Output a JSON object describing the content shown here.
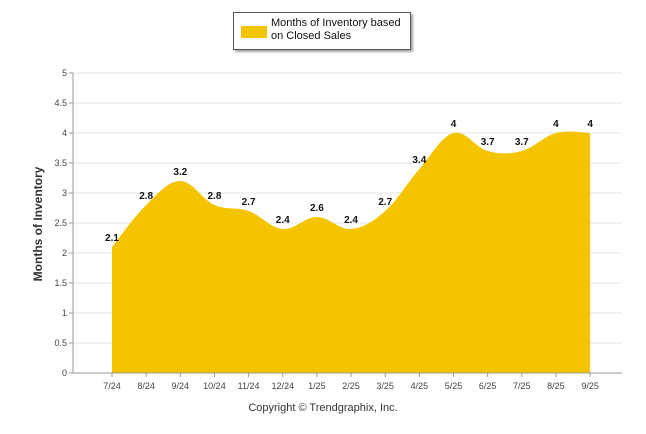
{
  "chart_data": {
    "type": "area",
    "title": "",
    "ylabel": "Months of Inventory",
    "xlabel": "",
    "categories": [
      "7/24",
      "8/24",
      "9/24",
      "10/24",
      "11/24",
      "12/24",
      "1/25",
      "2/25",
      "3/25",
      "4/25",
      "5/25",
      "6/25",
      "7/25",
      "8/25",
      "9/25"
    ],
    "series": [
      {
        "name": "Months of Inventory based on Closed Sales",
        "values": [
          2.1,
          2.8,
          3.2,
          2.8,
          2.7,
          2.4,
          2.6,
          2.4,
          2.7,
          3.4,
          4,
          3.7,
          3.7,
          4,
          4
        ],
        "labels": [
          "2.1",
          "2.8",
          "3.2",
          "2.8",
          "2.7",
          "2.4",
          "2.6",
          "2.4",
          "2.7",
          "3.4",
          "4",
          "3.7",
          "3.7",
          "4",
          "4"
        ],
        "color": "#F5C400"
      }
    ],
    "ylim": [
      0,
      5
    ],
    "yticks": [
      "0",
      "0.5",
      "1",
      "1.5",
      "2",
      "2.5",
      "3",
      "3.5",
      "4",
      "4.5",
      "5"
    ],
    "grid": true,
    "legend_position": "top-center"
  },
  "legend": {
    "label": "Months of Inventory based on Closed Sales"
  },
  "footer": {
    "copyright": "Copyright © Trendgraphix, Inc."
  },
  "colors": {
    "fill": "#F5C400",
    "grid": "#e6e6e6",
    "axis": "#999999"
  }
}
